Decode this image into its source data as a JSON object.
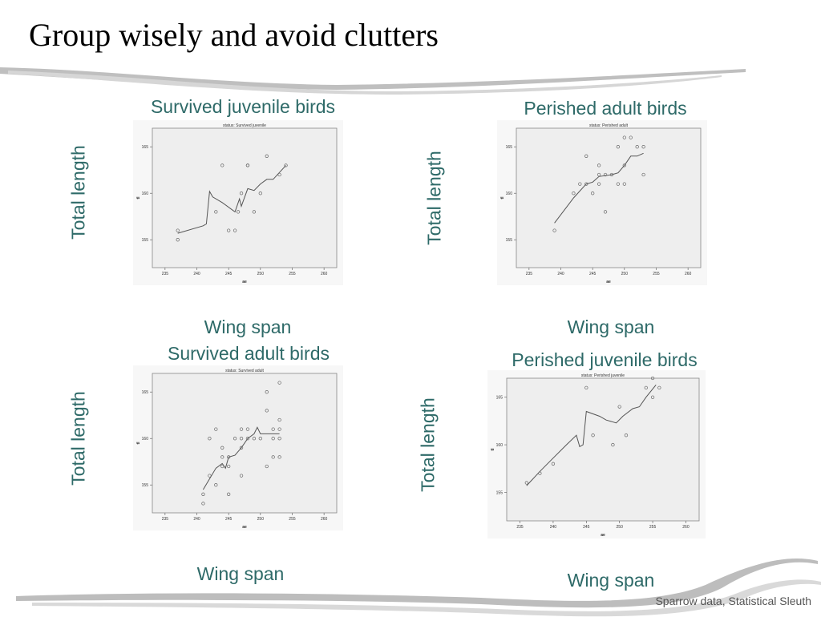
{
  "slide": {
    "title": "Group wisely and avoid clutters",
    "footer": "Sparrow data, Statistical Sleuth"
  },
  "colors": {
    "caption": "#2e6a68",
    "plot_bg": "#eeeeee",
    "line": "#555555",
    "point": "#666666"
  },
  "chart_data": [
    {
      "type": "scatter",
      "panel_title": "Survived juvenile birds",
      "inner_title": "status: Survived juvenile",
      "xlabel_caption": "Wing span",
      "ylabel_caption": "Total length",
      "xlabel": "ae",
      "ylabel": "tl",
      "xlim": [
        233,
        262
      ],
      "ylim": [
        152,
        167
      ],
      "x_ticks": [
        235,
        240,
        245,
        250,
        255,
        260
      ],
      "y_ticks": [
        155,
        160,
        165
      ],
      "grid": false,
      "points": [
        {
          "x": 237,
          "y": 156
        },
        {
          "x": 237,
          "y": 155
        },
        {
          "x": 243,
          "y": 158
        },
        {
          "x": 244,
          "y": 163
        },
        {
          "x": 245,
          "y": 156
        },
        {
          "x": 246,
          "y": 156
        },
        {
          "x": 246.5,
          "y": 158
        },
        {
          "x": 247,
          "y": 160
        },
        {
          "x": 248,
          "y": 163
        },
        {
          "x": 248,
          "y": 163
        },
        {
          "x": 249,
          "y": 158
        },
        {
          "x": 250,
          "y": 160
        },
        {
          "x": 251,
          "y": 164
        },
        {
          "x": 253,
          "y": 162
        },
        {
          "x": 254,
          "y": 163
        }
      ],
      "trend": [
        [
          237,
          155.7
        ],
        [
          241,
          156.5
        ],
        [
          241.5,
          156.7
        ],
        [
          242,
          160.2
        ],
        [
          242.5,
          159.6
        ],
        [
          244,
          159
        ],
        [
          246,
          158
        ],
        [
          246.7,
          159.4
        ],
        [
          247,
          158.6
        ],
        [
          248,
          160.5
        ],
        [
          249,
          160.3
        ],
        [
          250,
          161
        ],
        [
          251,
          161.5
        ],
        [
          252,
          161.5
        ],
        [
          254,
          163
        ]
      ]
    },
    {
      "type": "scatter",
      "panel_title": "Perished adult birds",
      "inner_title": "status: Perished adult",
      "xlabel_caption": "Wing span",
      "ylabel_caption": "Total length",
      "xlabel": "ae",
      "ylabel": "tl",
      "xlim": [
        233,
        262
      ],
      "ylim": [
        152,
        167
      ],
      "x_ticks": [
        235,
        240,
        245,
        250,
        255,
        260
      ],
      "y_ticks": [
        155,
        160,
        165
      ],
      "grid": false,
      "points": [
        {
          "x": 239,
          "y": 156
        },
        {
          "x": 242,
          "y": 160
        },
        {
          "x": 243,
          "y": 161
        },
        {
          "x": 244,
          "y": 161
        },
        {
          "x": 244,
          "y": 164
        },
        {
          "x": 245,
          "y": 160
        },
        {
          "x": 246,
          "y": 161
        },
        {
          "x": 246,
          "y": 162
        },
        {
          "x": 246,
          "y": 163
        },
        {
          "x": 247,
          "y": 158
        },
        {
          "x": 247,
          "y": 162
        },
        {
          "x": 248,
          "y": 162
        },
        {
          "x": 249,
          "y": 161
        },
        {
          "x": 249,
          "y": 165
        },
        {
          "x": 250,
          "y": 161
        },
        {
          "x": 250,
          "y": 163
        },
        {
          "x": 250,
          "y": 166
        },
        {
          "x": 251,
          "y": 166
        },
        {
          "x": 252,
          "y": 165
        },
        {
          "x": 253,
          "y": 165
        },
        {
          "x": 253,
          "y": 162
        }
      ],
      "trend": [
        [
          239,
          156.8
        ],
        [
          242,
          159.5
        ],
        [
          244,
          161
        ],
        [
          245,
          161.2
        ],
        [
          246,
          161.8
        ],
        [
          248,
          162
        ],
        [
          249,
          162.2
        ],
        [
          250,
          163
        ],
        [
          251,
          164
        ],
        [
          252,
          164
        ],
        [
          253,
          164.3
        ]
      ]
    },
    {
      "type": "scatter",
      "panel_title": "Survived adult birds",
      "inner_title": "status: Survived adult",
      "xlabel_caption": "Wing span",
      "ylabel_caption": "Total length",
      "xlabel": "ae",
      "ylabel": "tl",
      "xlim": [
        233,
        262
      ],
      "ylim": [
        152,
        167
      ],
      "x_ticks": [
        235,
        240,
        245,
        250,
        255,
        260
      ],
      "y_ticks": [
        155,
        160,
        165
      ],
      "grid": false,
      "points": [
        {
          "x": 241,
          "y": 153
        },
        {
          "x": 241,
          "y": 154
        },
        {
          "x": 242,
          "y": 156
        },
        {
          "x": 242,
          "y": 160
        },
        {
          "x": 243,
          "y": 155
        },
        {
          "x": 243,
          "y": 161
        },
        {
          "x": 244,
          "y": 157
        },
        {
          "x": 244,
          "y": 158
        },
        {
          "x": 244,
          "y": 159
        },
        {
          "x": 245,
          "y": 154
        },
        {
          "x": 245,
          "y": 157
        },
        {
          "x": 245,
          "y": 158
        },
        {
          "x": 246,
          "y": 160
        },
        {
          "x": 247,
          "y": 156
        },
        {
          "x": 247,
          "y": 159
        },
        {
          "x": 247,
          "y": 160
        },
        {
          "x": 247,
          "y": 161
        },
        {
          "x": 248,
          "y": 160
        },
        {
          "x": 248,
          "y": 161
        },
        {
          "x": 249,
          "y": 160
        },
        {
          "x": 250,
          "y": 160
        },
        {
          "x": 251,
          "y": 157
        },
        {
          "x": 251,
          "y": 163
        },
        {
          "x": 251,
          "y": 165
        },
        {
          "x": 252,
          "y": 158
        },
        {
          "x": 252,
          "y": 160
        },
        {
          "x": 252,
          "y": 161
        },
        {
          "x": 253,
          "y": 158
        },
        {
          "x": 253,
          "y": 160
        },
        {
          "x": 253,
          "y": 161
        },
        {
          "x": 253,
          "y": 162
        },
        {
          "x": 253,
          "y": 166
        }
      ],
      "trend": [
        [
          241,
          154.5
        ],
        [
          243,
          156.8
        ],
        [
          244,
          157.3
        ],
        [
          244.5,
          156.8
        ],
        [
          245,
          158
        ],
        [
          246,
          158.2
        ],
        [
          247,
          159
        ],
        [
          248,
          160
        ],
        [
          249,
          160.5
        ],
        [
          249.5,
          161.2
        ],
        [
          250,
          160.5
        ],
        [
          251,
          160.5
        ],
        [
          253,
          160.5
        ]
      ]
    },
    {
      "type": "scatter",
      "panel_title": "Perished juvenile birds",
      "inner_title": "status: Perished juvenile",
      "xlabel_caption": "Wing span",
      "ylabel_caption": "Total length",
      "xlabel": "ae",
      "ylabel": "tl",
      "xlim": [
        233,
        262
      ],
      "ylim": [
        152,
        167
      ],
      "x_ticks": [
        235,
        240,
        245,
        250,
        255,
        260
      ],
      "y_ticks": [
        155,
        160,
        165
      ],
      "grid": false,
      "points": [
        {
          "x": 236,
          "y": 156
        },
        {
          "x": 238,
          "y": 157
        },
        {
          "x": 240,
          "y": 158
        },
        {
          "x": 245,
          "y": 166
        },
        {
          "x": 246,
          "y": 161
        },
        {
          "x": 249,
          "y": 160
        },
        {
          "x": 250,
          "y": 164
        },
        {
          "x": 251,
          "y": 161
        },
        {
          "x": 254,
          "y": 166
        },
        {
          "x": 255,
          "y": 165
        },
        {
          "x": 255,
          "y": 167
        },
        {
          "x": 256,
          "y": 166
        }
      ],
      "trend": [
        [
          236,
          155.7
        ],
        [
          238,
          157.2
        ],
        [
          240,
          158.6
        ],
        [
          242,
          160
        ],
        [
          243.5,
          161
        ],
        [
          244,
          159.8
        ],
        [
          244.5,
          160
        ],
        [
          245,
          163.5
        ],
        [
          247,
          163
        ],
        [
          248,
          162.6
        ],
        [
          249.5,
          162.3
        ],
        [
          250.5,
          163
        ],
        [
          252,
          163.8
        ],
        [
          253,
          164
        ],
        [
          254,
          165
        ],
        [
          255.5,
          166.3
        ]
      ]
    }
  ]
}
